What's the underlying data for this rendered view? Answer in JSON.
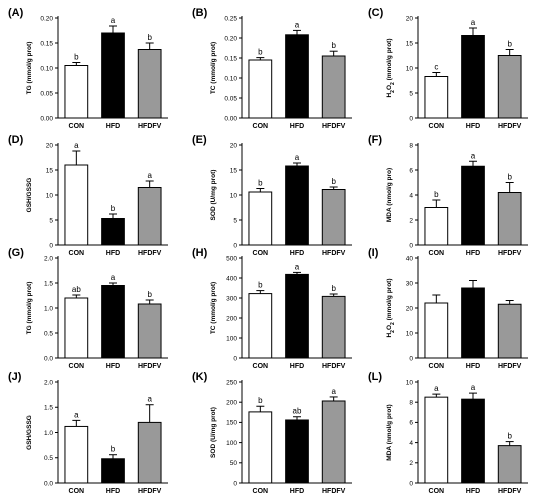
{
  "chart_data": [
    {
      "id": "A",
      "label": "(A)",
      "type": "bar",
      "ylabel": "TG (mmol/g prot)",
      "categories": [
        "CON",
        "HFD",
        "HFDFV"
      ],
      "values": [
        0.105,
        0.17,
        0.137
      ],
      "errors": [
        0.006,
        0.014,
        0.013
      ],
      "sig": [
        "b",
        "a",
        "b"
      ],
      "ylim": [
        0,
        0.2
      ],
      "yticks": [
        "0.00",
        "0.05",
        "0.10",
        "0.15",
        "0.20"
      ],
      "colors": [
        "#ffffff",
        "#000000",
        "#999999"
      ]
    },
    {
      "id": "B",
      "label": "(B)",
      "type": "bar",
      "ylabel": "TC (mmol/g prot)",
      "categories": [
        "CON",
        "HFD",
        "HFDFV"
      ],
      "values": [
        0.145,
        0.208,
        0.155
      ],
      "errors": [
        0.006,
        0.011,
        0.012
      ],
      "sig": [
        "b",
        "a",
        "b"
      ],
      "ylim": [
        0,
        0.25
      ],
      "yticks": [
        "0.00",
        "0.05",
        "0.10",
        "0.15",
        "0.20",
        "0.25"
      ],
      "colors": [
        "#ffffff",
        "#000000",
        "#999999"
      ]
    },
    {
      "id": "C",
      "label": "(C)",
      "type": "bar",
      "ylabel": "H2O2 (mmol/g prot)",
      "ylabel_parts": [
        "H",
        "2",
        "O",
        "2",
        " (mmol/g prot)"
      ],
      "categories": [
        "CON",
        "HFD",
        "HFDFV"
      ],
      "values": [
        8.3,
        16.5,
        12.5
      ],
      "errors": [
        0.8,
        1.5,
        1.2
      ],
      "sig": [
        "c",
        "a",
        "b"
      ],
      "ylim": [
        0,
        20
      ],
      "yticks": [
        "0",
        "5",
        "10",
        "15",
        "20"
      ],
      "colors": [
        "#ffffff",
        "#000000",
        "#999999"
      ]
    },
    {
      "id": "D",
      "label": "(D)",
      "type": "bar",
      "ylabel": "GSH/GSSG",
      "categories": [
        "CON",
        "HFD",
        "HFDFV"
      ],
      "values": [
        16.0,
        5.3,
        11.5
      ],
      "errors": [
        2.8,
        0.9,
        1.3
      ],
      "sig": [
        "a",
        "b",
        "a"
      ],
      "ylim": [
        0,
        20
      ],
      "yticks": [
        "0",
        "5",
        "10",
        "15",
        "20"
      ],
      "colors": [
        "#ffffff",
        "#000000",
        "#999999"
      ]
    },
    {
      "id": "E",
      "label": "(E)",
      "type": "bar",
      "ylabel": "SOD (U/mg prot)",
      "categories": [
        "CON",
        "HFD",
        "HFDFV"
      ],
      "values": [
        10.6,
        15.8,
        11.1
      ],
      "errors": [
        0.7,
        0.6,
        0.5
      ],
      "sig": [
        "b",
        "a",
        "b"
      ],
      "ylim": [
        0,
        20
      ],
      "yticks": [
        "0",
        "5",
        "10",
        "15",
        "20"
      ],
      "colors": [
        "#ffffff",
        "#000000",
        "#999999"
      ]
    },
    {
      "id": "F",
      "label": "(F)",
      "type": "bar",
      "ylabel": "MDA (nmol/g pro)",
      "categories": [
        "CON",
        "HFD",
        "HFDFV"
      ],
      "values": [
        3.0,
        6.3,
        4.2
      ],
      "errors": [
        0.6,
        0.4,
        0.8
      ],
      "sig": [
        "b",
        "a",
        "b"
      ],
      "ylim": [
        0,
        8
      ],
      "yticks": [
        "0",
        "2",
        "4",
        "6",
        "8"
      ],
      "colors": [
        "#ffffff",
        "#000000",
        "#999999"
      ]
    },
    {
      "id": "G",
      "label": "(G)",
      "type": "bar",
      "ylabel": "TG (mmol/g prot)",
      "categories": [
        "CON",
        "HFD",
        "HFDFV"
      ],
      "values": [
        1.2,
        1.45,
        1.08
      ],
      "errors": [
        0.06,
        0.05,
        0.08
      ],
      "sig": [
        "ab",
        "a",
        "b"
      ],
      "ylim": [
        0,
        2.0
      ],
      "yticks": [
        "0.0",
        "0.5",
        "1.0",
        "1.5",
        "2.0"
      ],
      "colors": [
        "#ffffff",
        "#000000",
        "#999999"
      ]
    },
    {
      "id": "H",
      "label": "(H)",
      "type": "bar",
      "ylabel": "TC (mmol/g prot)",
      "categories": [
        "CON",
        "HFD",
        "HFDFV"
      ],
      "values": [
        322,
        418,
        308
      ],
      "errors": [
        15,
        10,
        12
      ],
      "sig": [
        "b",
        "a",
        "b"
      ],
      "ylim": [
        0,
        500
      ],
      "yticks": [
        "0",
        "100",
        "200",
        "300",
        "400",
        "500"
      ],
      "colors": [
        "#ffffff",
        "#000000",
        "#999999"
      ]
    },
    {
      "id": "I",
      "label": "(I)",
      "type": "bar",
      "ylabel": "H2O2 (mmol/g prot)",
      "ylabel_parts": [
        "H",
        "2",
        "O",
        "2",
        " (mmol/g prot)"
      ],
      "categories": [
        "CON",
        "HFD",
        "HFDFV"
      ],
      "values": [
        22.0,
        28.0,
        21.5
      ],
      "errors": [
        3.2,
        3.0,
        1.5
      ],
      "sig": [
        "",
        "",
        ""
      ],
      "ylim": [
        0,
        40
      ],
      "yticks": [
        "0",
        "10",
        "20",
        "30",
        "40"
      ],
      "colors": [
        "#ffffff",
        "#000000",
        "#999999"
      ]
    },
    {
      "id": "J",
      "label": "(J)",
      "type": "bar",
      "ylabel": "GSH/GSSG",
      "categories": [
        "CON",
        "HFD",
        "HFDFV"
      ],
      "values": [
        1.12,
        0.48,
        1.2
      ],
      "errors": [
        0.12,
        0.08,
        0.35
      ],
      "sig": [
        "a",
        "b",
        "a"
      ],
      "ylim": [
        0,
        2.0
      ],
      "yticks": [
        "0.0",
        "0.5",
        "1.0",
        "1.5",
        "2.0"
      ],
      "colors": [
        "#ffffff",
        "#000000",
        "#999999"
      ]
    },
    {
      "id": "K",
      "label": "(K)",
      "type": "bar",
      "ylabel": "SOD (U/mg prot)",
      "categories": [
        "CON",
        "HFD",
        "HFDFV"
      ],
      "values": [
        176,
        156,
        203
      ],
      "errors": [
        14,
        8,
        10
      ],
      "sig": [
        "b",
        "ab",
        "a"
      ],
      "ylim": [
        0,
        250
      ],
      "yticks": [
        "0",
        "50",
        "100",
        "150",
        "200",
        "250"
      ],
      "colors": [
        "#ffffff",
        "#000000",
        "#999999"
      ]
    },
    {
      "id": "L",
      "label": "(L)",
      "type": "bar",
      "ylabel": "MDA (nmol/g prot)",
      "categories": [
        "CON",
        "HFD",
        "HFDFV"
      ],
      "values": [
        8.5,
        8.3,
        3.7
      ],
      "errors": [
        0.3,
        0.6,
        0.4
      ],
      "sig": [
        "a",
        "a",
        "b"
      ],
      "ylim": [
        0,
        10
      ],
      "yticks": [
        "0",
        "2",
        "4",
        "6",
        "8",
        "10"
      ],
      "colors": [
        "#ffffff",
        "#000000",
        "#999999"
      ]
    }
  ]
}
